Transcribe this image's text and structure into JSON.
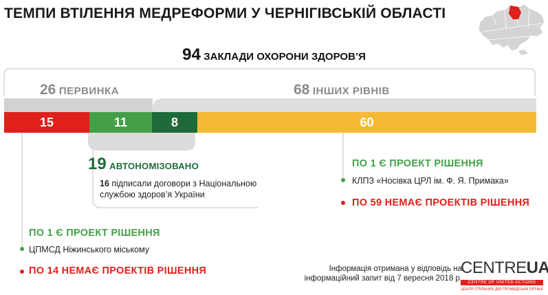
{
  "title": "ТЕМПИ ВТІЛЕННЯ МЕДРЕФОРМИ У ЧЕРНІГІВСЬКІЙ ОБЛАСТІ",
  "total": {
    "value": "94",
    "label": "ЗАКЛАДИ ОХОРОНИ ЗДОРОВ’Я"
  },
  "groups": {
    "primary": {
      "value": "26",
      "label": "ПЕРВИНКА"
    },
    "other": {
      "value": "68",
      "label": "ІНШИХ РІВНІВ"
    }
  },
  "autonomized": {
    "value": "19",
    "label": "АВТОНОМІЗОВАНО",
    "desc_num": "16",
    "desc_text": "підписали договори з Національною службою здоров’я України"
  },
  "left_block": {
    "project_label": "ПО 1 Є ПРОЕКТ РІШЕННЯ",
    "facility": "ЦПМСД Ніжинського міському",
    "no_project_label": "ПО 14 НЕМАЄ ПРОЕКТІВ РІШЕННЯ"
  },
  "right_block": {
    "project_label": "ПО 1 Є ПРОЕКТ РІШЕННЯ",
    "facility": "КЛПЗ «Носівка ЦРЛ ім. Ф. Я. Примака»",
    "no_project_label": "ПО 59 НЕМАЄ ПРОЕКТІВ РІШЕННЯ"
  },
  "note": "Інформація отримана у відповідь на інформаційний запит від 7 вересня 2018 р.",
  "logo": {
    "text": "CENTRE",
    "text_bold": "UA",
    "band": "CENTRE OF UNITED ACTIONS",
    "sub": "ЦЕНТР СПІЛЬНИХ ДІЙ ГРОМАДСЬКА ОРГАНІЗАЦІЯ"
  },
  "colors": {
    "red": "#e0201b",
    "light_green": "#43a047",
    "dark_green": "#1e6b39",
    "yellow": "#f5b935",
    "gray": "#8a8a8a"
  },
  "chart_data": {
    "type": "bar",
    "orientation": "horizontal-stacked",
    "total": 94,
    "segments": [
      {
        "value": 15,
        "color": "#e0201b"
      },
      {
        "value": 11,
        "color": "#43a047"
      },
      {
        "value": 8,
        "color": "#1e6b39"
      },
      {
        "value": 60,
        "color": "#f5b935"
      }
    ]
  }
}
